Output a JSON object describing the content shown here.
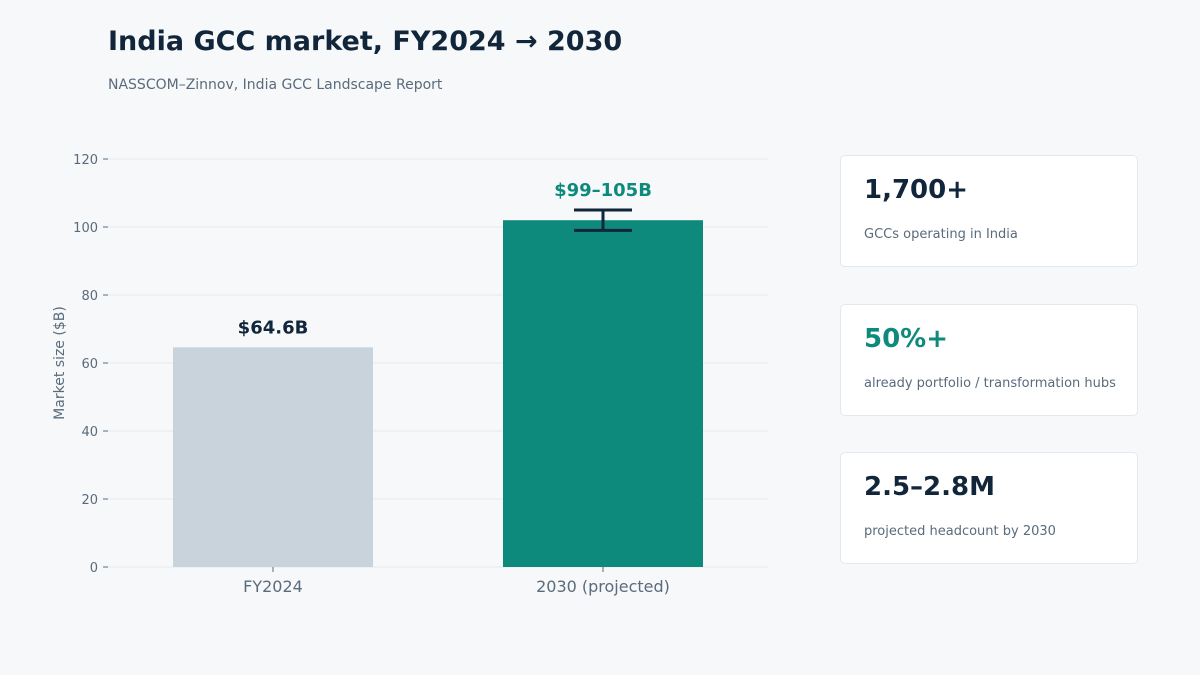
{
  "header": {
    "title": "India GCC market, FY2024 → 2030",
    "subtitle": "NASSCOM–Zinnov, India GCC Landscape Report"
  },
  "chart_data": {
    "type": "bar",
    "categories": [
      "FY2024",
      "2030 (projected)"
    ],
    "values": [
      64.6,
      102
    ],
    "error_range": [
      null,
      [
        99,
        105
      ]
    ],
    "data_labels": [
      "$64.6B",
      "$99–105B"
    ],
    "title": "",
    "xlabel": "",
    "ylabel": "Market size ($B)",
    "ylim": [
      0,
      120
    ],
    "yticks": [
      0,
      20,
      40,
      60,
      80,
      100,
      120
    ],
    "grid": true,
    "colors": [
      "#c8d3dc",
      "#0e8a7c"
    ],
    "label_colors": [
      "#11263a",
      "#0e8a7c"
    ],
    "error_color": "#11263a"
  },
  "stats": [
    {
      "value": "1,700+",
      "label": "GCCs operating in India",
      "accent": false
    },
    {
      "value": "50%+",
      "label": "already portfolio / transformation hubs",
      "accent": true
    },
    {
      "value": "2.5–2.8M",
      "label": "projected headcount by 2030",
      "accent": false
    }
  ]
}
